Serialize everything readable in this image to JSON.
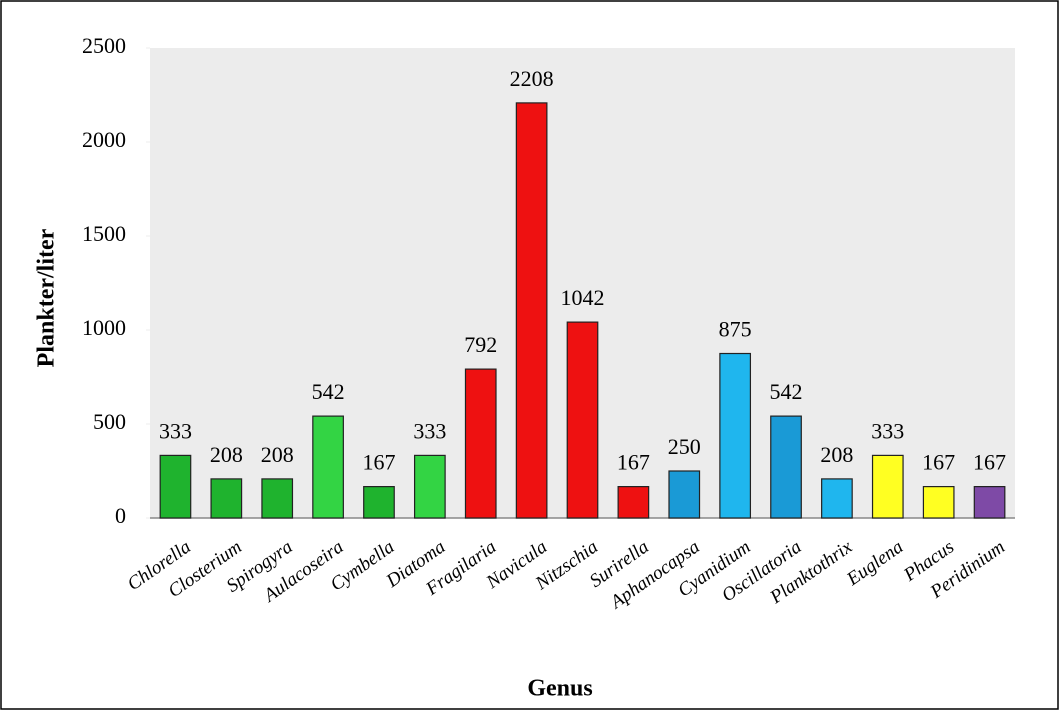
{
  "chart_data": {
    "type": "bar",
    "x_label": "Genus",
    "y_label": "Plankter/liter",
    "categories": [
      "Chlorella",
      "Closterium",
      "Spirogyra",
      "Aulacoseira",
      "Cymbella",
      "Diatoma",
      "Fragilaria",
      "Navicula",
      "Nitzschia",
      "Surirella",
      "Aphanocapsa",
      "Cyanidium",
      "Oscillatoria",
      "Planktothrix",
      "Euglena",
      "Phacus",
      "Peridinium"
    ],
    "values": [
      333,
      208,
      208,
      542,
      167,
      333,
      792,
      2208,
      1042,
      167,
      250,
      875,
      542,
      208,
      333,
      167,
      167
    ],
    "colors": [
      "#1fb32e",
      "#1fb32e",
      "#1fb32e",
      "#33d444",
      "#1fb32e",
      "#33d444",
      "#ee1111",
      "#ee1111",
      "#ee1111",
      "#ee1111",
      "#1a9ad6",
      "#1fb6ee",
      "#1a9ad6",
      "#1fb6ee",
      "#ffff22",
      "#ffff22",
      "#7e4aa6"
    ],
    "ylim": [
      0,
      2500
    ],
    "yticks": [
      0,
      500,
      1000,
      1500,
      2000,
      2500
    ]
  }
}
